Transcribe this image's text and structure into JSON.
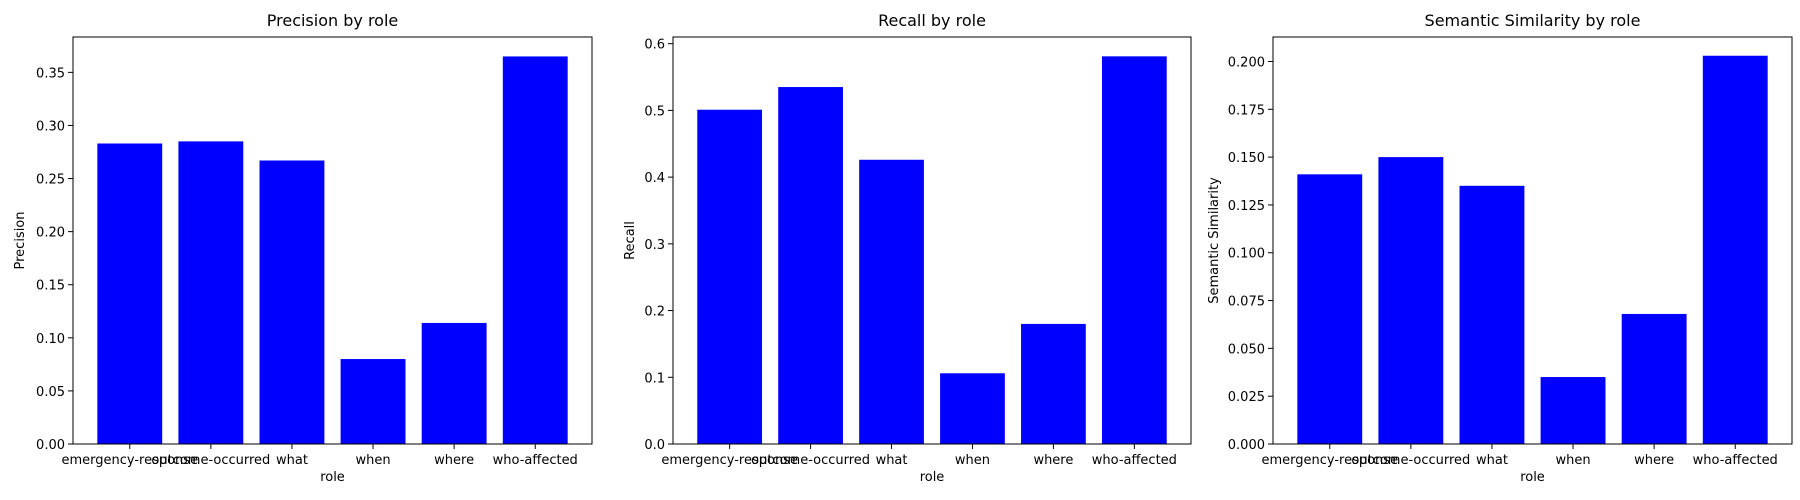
{
  "chart_data": [
    {
      "type": "bar",
      "title": "Precision by role",
      "xlabel": "role",
      "ylabel": "Precision",
      "categories": [
        "emergency-response",
        "outcome-occurred",
        "what",
        "when",
        "where",
        "who-affected"
      ],
      "values": [
        0.283,
        0.285,
        0.267,
        0.08,
        0.114,
        0.365
      ],
      "ylim": [
        0,
        0.3833
      ],
      "yticks": [
        0.0,
        0.05,
        0.1,
        0.15,
        0.2,
        0.25,
        0.3,
        0.35
      ],
      "ytick_labels": [
        "0.00",
        "0.05",
        "0.10",
        "0.15",
        "0.20",
        "0.25",
        "0.30",
        "0.35"
      ],
      "color": "#0000ff",
      "grid": false
    },
    {
      "type": "bar",
      "title": "Recall by role",
      "xlabel": "role",
      "ylabel": "Recall",
      "categories": [
        "emergency-response",
        "outcome-occurred",
        "what",
        "when",
        "where",
        "who-affected"
      ],
      "values": [
        0.501,
        0.535,
        0.426,
        0.106,
        0.18,
        0.581
      ],
      "ylim": [
        0,
        0.61
      ],
      "yticks": [
        0.0,
        0.1,
        0.2,
        0.3,
        0.4,
        0.5,
        0.6
      ],
      "ytick_labels": [
        "0.0",
        "0.1",
        "0.2",
        "0.3",
        "0.4",
        "0.5",
        "0.6"
      ],
      "color": "#0000ff",
      "grid": false
    },
    {
      "type": "bar",
      "title": "Semantic Similarity by role",
      "xlabel": "role",
      "ylabel": "Semantic Similarity",
      "categories": [
        "emergency-response",
        "outcome-occurred",
        "what",
        "when",
        "where",
        "who-affected"
      ],
      "values": [
        0.141,
        0.15,
        0.135,
        0.035,
        0.068,
        0.203
      ],
      "ylim": [
        0,
        0.2128
      ],
      "yticks": [
        0.0,
        0.025,
        0.05,
        0.075,
        0.1,
        0.125,
        0.15,
        0.175,
        0.2
      ],
      "ytick_labels": [
        "0.000",
        "0.025",
        "0.050",
        "0.075",
        "0.100",
        "0.125",
        "0.150",
        "0.175",
        "0.200"
      ],
      "color": "#0000ff",
      "grid": false
    }
  ]
}
